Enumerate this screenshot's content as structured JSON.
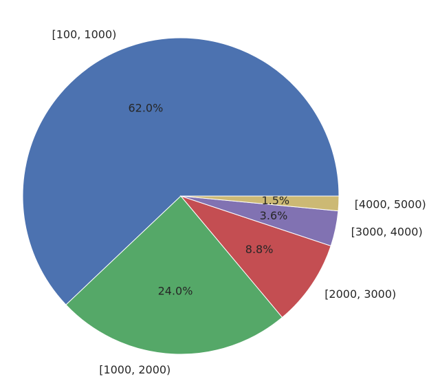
{
  "chart_data": {
    "type": "pie",
    "categories": [
      "[100, 1000)",
      "[1000, 2000)",
      "[2000, 3000)",
      "[3000, 4000)",
      "[4000, 5000)"
    ],
    "values": [
      62.0,
      24.0,
      8.8,
      3.6,
      1.5
    ],
    "value_labels": [
      "62.0%",
      "24.0%",
      "8.8%",
      "3.6%",
      "1.5%"
    ],
    "colors": [
      "#4c72b0",
      "#55a868",
      "#c44e52",
      "#8172b2",
      "#ccb974"
    ],
    "start_angle_deg": 0,
    "direction": "counterclockwise",
    "title": "",
    "legend": "none"
  }
}
